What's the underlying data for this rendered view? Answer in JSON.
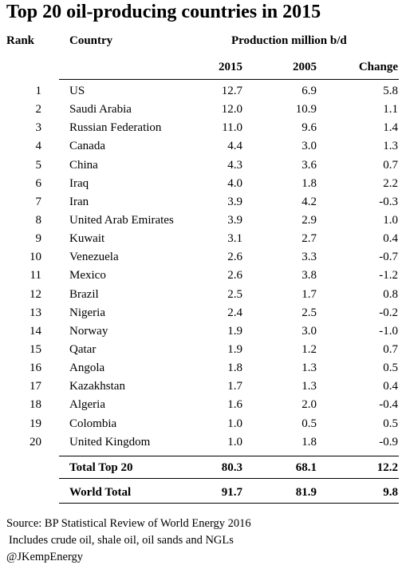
{
  "title": "Top 20 oil-producing countries in 2015",
  "headers": {
    "rank": "Rank",
    "country": "Country",
    "production": "Production million b/d",
    "y2015": "2015",
    "y2005": "2005",
    "change": "Change"
  },
  "rows": [
    {
      "rank": "1",
      "country": "US",
      "v2015": "12.7",
      "v2005": "6.9",
      "change": "5.8"
    },
    {
      "rank": "2",
      "country": "Saudi Arabia",
      "v2015": "12.0",
      "v2005": "10.9",
      "change": "1.1"
    },
    {
      "rank": "3",
      "country": "Russian Federation",
      "v2015": "11.0",
      "v2005": "9.6",
      "change": "1.4"
    },
    {
      "rank": "4",
      "country": "Canada",
      "v2015": "4.4",
      "v2005": "3.0",
      "change": "1.3"
    },
    {
      "rank": "5",
      "country": "China",
      "v2015": "4.3",
      "v2005": "3.6",
      "change": "0.7"
    },
    {
      "rank": "6",
      "country": "Iraq",
      "v2015": "4.0",
      "v2005": "1.8",
      "change": "2.2"
    },
    {
      "rank": "7",
      "country": "Iran",
      "v2015": "3.9",
      "v2005": "4.2",
      "change": "-0.3"
    },
    {
      "rank": "8",
      "country": "United Arab Emirates",
      "v2015": "3.9",
      "v2005": "2.9",
      "change": "1.0"
    },
    {
      "rank": "9",
      "country": "Kuwait",
      "v2015": "3.1",
      "v2005": "2.7",
      "change": "0.4"
    },
    {
      "rank": "10",
      "country": "Venezuela",
      "v2015": "2.6",
      "v2005": "3.3",
      "change": "-0.7"
    },
    {
      "rank": "11",
      "country": "Mexico",
      "v2015": "2.6",
      "v2005": "3.8",
      "change": "-1.2"
    },
    {
      "rank": "12",
      "country": "Brazil",
      "v2015": "2.5",
      "v2005": "1.7",
      "change": "0.8"
    },
    {
      "rank": "13",
      "country": "Nigeria",
      "v2015": "2.4",
      "v2005": "2.5",
      "change": "-0.2"
    },
    {
      "rank": "14",
      "country": "Norway",
      "v2015": "1.9",
      "v2005": "3.0",
      "change": "-1.0"
    },
    {
      "rank": "15",
      "country": "Qatar",
      "v2015": "1.9",
      "v2005": "1.2",
      "change": "0.7"
    },
    {
      "rank": "16",
      "country": "Angola",
      "v2015": "1.8",
      "v2005": "1.3",
      "change": "0.5"
    },
    {
      "rank": "17",
      "country": "Kazakhstan",
      "v2015": "1.7",
      "v2005": "1.3",
      "change": "0.4"
    },
    {
      "rank": "18",
      "country": "Algeria",
      "v2015": "1.6",
      "v2005": "2.0",
      "change": "-0.4"
    },
    {
      "rank": "19",
      "country": "Colombia",
      "v2015": "1.0",
      "v2005": "0.5",
      "change": "0.5"
    },
    {
      "rank": "20",
      "country": "United Kingdom",
      "v2015": "1.0",
      "v2005": "1.8",
      "change": "-0.9"
    }
  ],
  "totals": {
    "top20": {
      "label": "Total Top 20",
      "v2015": "80.3",
      "v2005": "68.1",
      "change": "12.2"
    },
    "world": {
      "label": "World Total",
      "v2015": "91.7",
      "v2005": "81.9",
      "change": "9.8"
    }
  },
  "footer": {
    "source": "Source: BP Statistical Review of World Energy 2016",
    "note": "Includes crude oil, shale oil, oil sands and NGLs",
    "handle": "@JKempEnergy"
  }
}
